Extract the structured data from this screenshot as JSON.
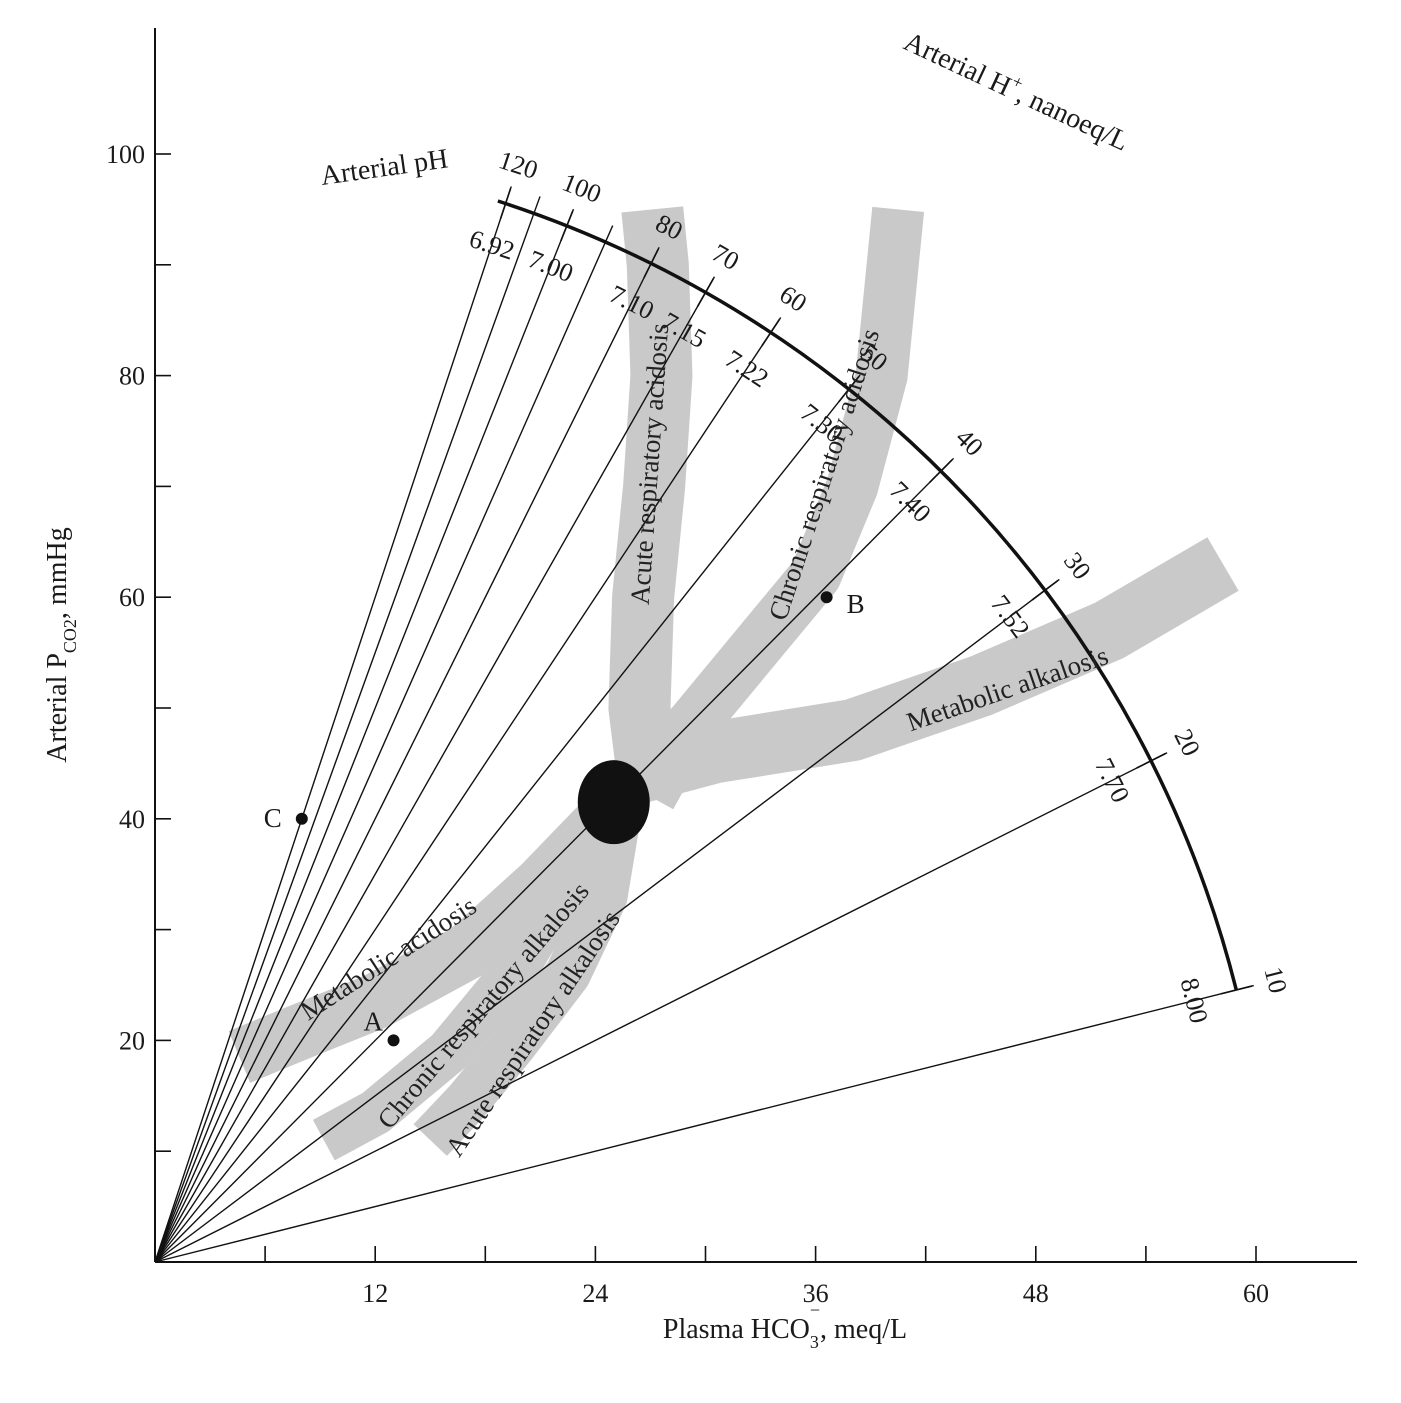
{
  "chart_data": {
    "type": "scatter",
    "title": "",
    "xlabel": "Plasma HCO",
    "xlabel_sub": "3",
    "xlabel_sup": "−",
    "xlabel_rest": ", meq/L",
    "ylabel": "Arterial P",
    "ylabel_sub": "CO2",
    "ylabel_rest": ", mmHg",
    "xlim": [
      0,
      66
    ],
    "ylim": [
      0,
      108
    ],
    "x_ticks_labeled": [
      12,
      24,
      36,
      48,
      60
    ],
    "x_ticks_minor": [
      6,
      18,
      30,
      42,
      54
    ],
    "y_ticks_labeled": [
      20,
      40,
      60,
      80,
      100
    ],
    "y_ticks_minor": [
      10,
      30,
      50,
      70,
      90
    ],
    "ph_scale_title": "Arterial pH",
    "h_scale_title": "Arterial H",
    "h_scale_title_sup": "+",
    "h_scale_title_rest": ", nanoeq/L",
    "ph_isopleths": [
      {
        "ph": "6.92",
        "h": "120"
      },
      {
        "ph": "7.00",
        "h": "100"
      },
      {
        "ph": "7.10",
        "h": "80"
      },
      {
        "ph": "7.15",
        "h": "70"
      },
      {
        "ph": "7.22",
        "h": "60"
      },
      {
        "ph": "7.30",
        "h": "50"
      },
      {
        "ph": "7.40",
        "h": "40"
      },
      {
        "ph": "7.52",
        "h": "30"
      },
      {
        "ph": "7.70",
        "h": "20"
      },
      {
        "ph": "8.00",
        "h": "10"
      }
    ],
    "isopleth_lines": [
      {
        "H": 120,
        "labeled": true
      },
      {
        "H": 110,
        "labeled": false
      },
      {
        "H": 100,
        "labeled": true
      },
      {
        "H": 90,
        "labeled": false
      },
      {
        "H": 80,
        "labeled": true
      },
      {
        "H": 70,
        "labeled": true
      },
      {
        "H": 60,
        "labeled": true
      },
      {
        "H": 50,
        "labeled": true
      },
      {
        "H": 40,
        "labeled": true
      },
      {
        "H": 30,
        "labeled": true
      },
      {
        "H": 20,
        "labeled": true
      },
      {
        "H": 10,
        "labeled": true
      }
    ],
    "regions": [
      {
        "name": "Acute respiratory acidosis",
        "path": [
          [
            27,
            42
          ],
          [
            26.4,
            50
          ],
          [
            26.6,
            60
          ],
          [
            27.2,
            70
          ],
          [
            27.6,
            80
          ],
          [
            27.4,
            90
          ],
          [
            27.1,
            95
          ]
        ]
      },
      {
        "name": "Chronic respiratory acidosis",
        "path": [
          [
            27,
            42
          ],
          [
            29,
            48
          ],
          [
            32.5,
            55
          ],
          [
            36,
            62
          ],
          [
            38,
            70
          ],
          [
            39.6,
            80
          ],
          [
            40.2,
            90
          ],
          [
            40.5,
            95
          ]
        ]
      },
      {
        "name": "Metabolic alkalosis",
        "path": [
          [
            26,
            44
          ],
          [
            30.5,
            46
          ],
          [
            38,
            48
          ],
          [
            45,
            52
          ],
          [
            52,
            57
          ],
          [
            58.2,
            63
          ]
        ]
      },
      {
        "name": "Metabolic acidosis",
        "path": [
          [
            24.5,
            40
          ],
          [
            21,
            34
          ],
          [
            17,
            28
          ],
          [
            12,
            23.5
          ],
          [
            7.5,
            20.5
          ],
          [
            4.6,
            18.5
          ]
        ]
      },
      {
        "name": "Chronic respiratory alkalosis",
        "path": [
          [
            24.5,
            40
          ],
          [
            22,
            33
          ],
          [
            19.5,
            26
          ],
          [
            16,
            19
          ],
          [
            12,
            13.5
          ],
          [
            9.2,
            11
          ]
        ]
      },
      {
        "name": "Acute respiratory alkalosis",
        "path": [
          [
            25.2,
            40
          ],
          [
            24.5,
            33
          ],
          [
            22.5,
            26
          ],
          [
            19.5,
            19.5
          ],
          [
            17,
            14.5
          ],
          [
            15,
            11
          ]
        ]
      }
    ],
    "normal_region": {
      "x": 25,
      "y": 41.5,
      "label": ""
    },
    "points": [
      {
        "label": "A",
        "x": 13,
        "y": 20
      },
      {
        "label": "B",
        "x": 36.6,
        "y": 60
      },
      {
        "label": "C",
        "x": 8,
        "y": 40
      }
    ]
  }
}
